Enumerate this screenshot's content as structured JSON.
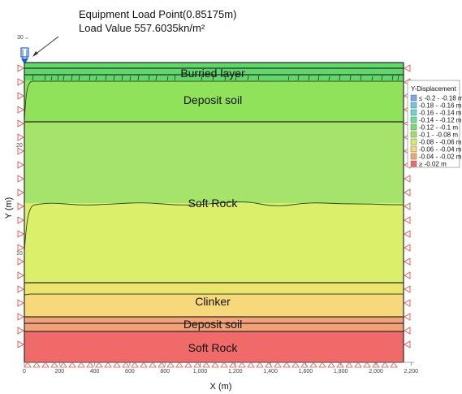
{
  "annotation": {
    "line1": "Equipment Load Point(0.85175m)",
    "line2": "Load Value 557.6035kn/m²"
  },
  "axes": {
    "y_label": "Y (m)",
    "x_label": "X (m)",
    "y_ticks": [
      "30",
      "20",
      "10"
    ],
    "x_ticks": [
      "0",
      "200",
      "400",
      "600",
      "800",
      "1,000",
      "1,200",
      "1,400",
      "1,600",
      "1,800",
      "2,000",
      "2,200"
    ]
  },
  "layers": [
    {
      "name": "Burried layer"
    },
    {
      "name": "Deposit soil"
    },
    {
      "name": "Soft Rock"
    },
    {
      "name": "Clinker"
    },
    {
      "name": "Deposit soil"
    },
    {
      "name": "Soft Rock"
    }
  ],
  "legend": {
    "title": "Y-Displacement",
    "items": [
      {
        "label": "≤ -0.2 - -0.18 m",
        "color": "#7aa6e6"
      },
      {
        "label": "-0.18 - -0.16 m",
        "color": "#6fc6e8"
      },
      {
        "label": "-0.16 - -0.14 m",
        "color": "#67d9cf"
      },
      {
        "label": "-0.14 - -0.12 m",
        "color": "#6fdc9a"
      },
      {
        "label": "-0.12 - -0.1 m",
        "color": "#78dd6a"
      },
      {
        "label": "-0.1 - -0.08 m",
        "color": "#9de36a"
      },
      {
        "label": "-0.08 - -0.06 m",
        "color": "#d4ee6a"
      },
      {
        "label": "-0.06 - -0.04 m",
        "color": "#f6d86c"
      },
      {
        "label": "-0.04 - -0.02 m",
        "color": "#f2a874"
      },
      {
        "label": "≥ -0.02 m",
        "color": "#ee6a6a"
      }
    ]
  },
  "colors": {
    "band_burried": "#5fd86a",
    "band_deposit_top": "#8fe25a",
    "band_softrock_upper": "#a6e36b",
    "band_softrock_lower": "#dcef6a",
    "band_clinker": "#f7d97b",
    "band_deposit_bottom": "#f3a277",
    "band_softrock_bottom": "#f06a6a",
    "support_red": "#d9534f",
    "load_blue": "#1f5fd6"
  }
}
